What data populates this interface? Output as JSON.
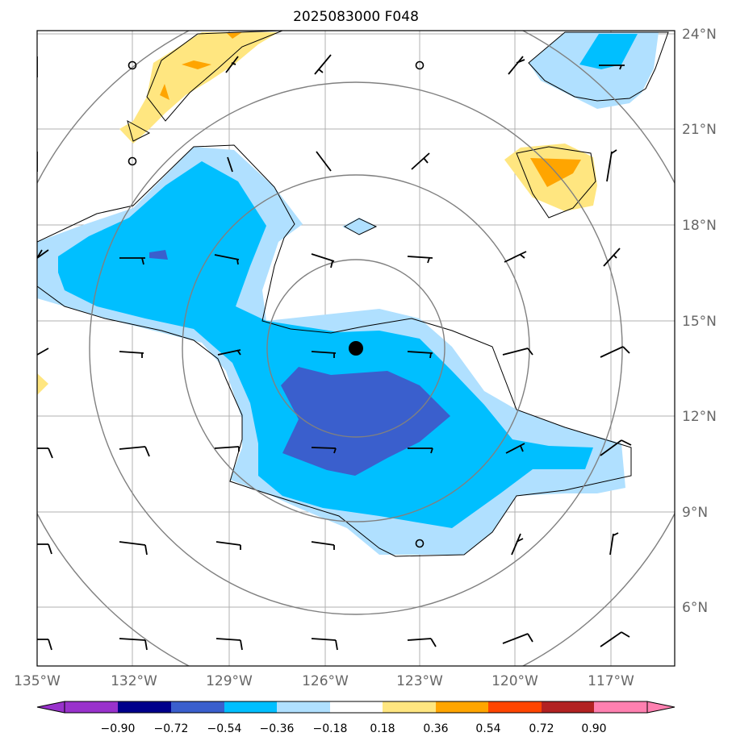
{
  "title": "2025083000 F048",
  "lat_labels": [
    "24°N",
    "21°N",
    "18°N",
    "15°N",
    "12°N",
    "9°N",
    "6°N"
  ],
  "lon_labels": [
    "135°W",
    "132°W",
    "129°W",
    "126°W",
    "123°W",
    "120°W",
    "117°W"
  ],
  "colorbar": {
    "tick_labels": [
      "−0.90",
      "−0.72",
      "−0.54",
      "−0.36",
      "−0.18",
      "0.18",
      "0.36",
      "0.54",
      "0.72",
      "0.90"
    ],
    "colors": [
      "#9932cc",
      "#00008b",
      "#3a5fcd",
      "#00bfff",
      "#b0e0ff",
      "#ffffff",
      "#ffe680",
      "#ffa500",
      "#ff4500",
      "#b22222",
      "#ff80b0"
    ]
  },
  "fill_colors": {
    "light_blue": "#b0e0ff",
    "blue": "#00bfff",
    "dark_blue": "#3a5fcd",
    "yellow": "#ffe680",
    "orange": "#ffa500"
  },
  "map_features": {
    "storm_center": "black-dot",
    "range_rings": "gray-circles",
    "wind_barbs": "black"
  }
}
